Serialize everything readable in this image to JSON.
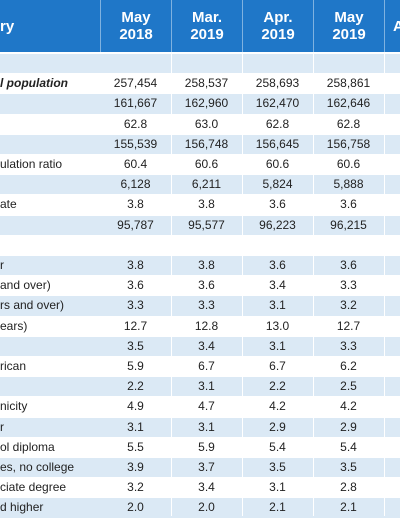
{
  "header": {
    "category": "ry",
    "columns": [
      {
        "month": "May",
        "year": "2018"
      },
      {
        "month": "Mar.",
        "year": "2019"
      },
      {
        "month": "Apr.",
        "year": "2019"
      },
      {
        "month": "May",
        "year": "2019"
      },
      {
        "month": "A",
        "year": ""
      }
    ]
  },
  "rows": [
    {
      "label": "",
      "values": [
        "",
        "",
        "",
        ""
      ]
    },
    {
      "label": "l population",
      "values": [
        "257,454",
        "258,537",
        "258,693",
        "258,861"
      ]
    },
    {
      "label": "",
      "values": [
        "161,667",
        "162,960",
        "162,470",
        "162,646"
      ]
    },
    {
      "label": "",
      "values": [
        "62.8",
        "63.0",
        "62.8",
        "62.8"
      ]
    },
    {
      "label": "",
      "values": [
        "155,539",
        "156,748",
        "156,645",
        "156,758"
      ]
    },
    {
      "label": "ulation ratio",
      "values": [
        "60.4",
        "60.6",
        "60.6",
        "60.6"
      ]
    },
    {
      "label": "",
      "values": [
        "6,128",
        "6,211",
        "5,824",
        "5,888"
      ]
    },
    {
      "label": "ate",
      "values": [
        "3.8",
        "3.8",
        "3.6",
        "3.6"
      ]
    },
    {
      "label": "",
      "values": [
        "95,787",
        "95,577",
        "96,223",
        "96,215"
      ]
    },
    {
      "label": "",
      "values": [
        "",
        "",
        "",
        ""
      ]
    },
    {
      "label": "r",
      "values": [
        "3.8",
        "3.8",
        "3.6",
        "3.6"
      ]
    },
    {
      "label": "and over)",
      "values": [
        "3.6",
        "3.6",
        "3.4",
        "3.3"
      ]
    },
    {
      "label": "rs and over)",
      "values": [
        "3.3",
        "3.3",
        "3.1",
        "3.2"
      ]
    },
    {
      "label": "ears)",
      "values": [
        "12.7",
        "12.8",
        "13.0",
        "12.7"
      ]
    },
    {
      "label": "",
      "values": [
        "3.5",
        "3.4",
        "3.1",
        "3.3"
      ]
    },
    {
      "label": "rican",
      "values": [
        "5.9",
        "6.7",
        "6.7",
        "6.2"
      ]
    },
    {
      "label": "",
      "values": [
        "2.2",
        "3.1",
        "2.2",
        "2.5"
      ]
    },
    {
      "label": "nicity",
      "values": [
        "4.9",
        "4.7",
        "4.2",
        "4.2"
      ]
    },
    {
      "label": "r",
      "values": [
        "3.1",
        "3.1",
        "2.9",
        "2.9"
      ]
    },
    {
      "label": "ol diploma",
      "values": [
        "5.5",
        "5.9",
        "5.4",
        "5.4"
      ]
    },
    {
      "label": "es, no college",
      "values": [
        "3.9",
        "3.7",
        "3.5",
        "3.5"
      ]
    },
    {
      "label": "ciate degree",
      "values": [
        "3.2",
        "3.4",
        "3.1",
        "2.8"
      ]
    },
    {
      "label": "d higher",
      "values": [
        "2.0",
        "2.0",
        "2.1",
        "2.1"
      ]
    }
  ]
}
